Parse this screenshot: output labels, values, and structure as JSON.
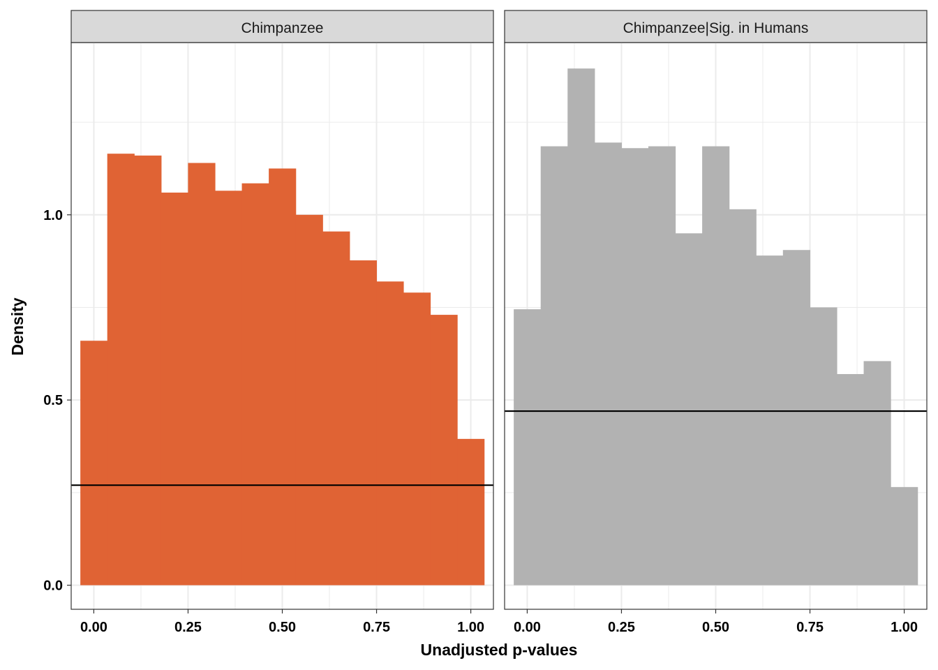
{
  "chart_data": {
    "type": "bar",
    "subtype": "faceted-histogram",
    "xlabel": "Unadjusted p-values",
    "ylabel": "Density",
    "xlim": [
      -0.06,
      1.06
    ],
    "ylim": [
      -0.065,
      1.465
    ],
    "x_ticks": [
      0.0,
      0.25,
      0.5,
      0.75,
      1.0
    ],
    "x_tick_labels": [
      "0.00",
      "0.25",
      "0.50",
      "0.75",
      "1.00"
    ],
    "y_ticks": [
      0.0,
      0.5,
      1.0
    ],
    "y_tick_labels": [
      "0.0",
      "0.5",
      "1.0"
    ],
    "grid": true,
    "bin_width": 0.0714,
    "bin_start": -0.0357,
    "facets": [
      {
        "name": "Chimpanzee",
        "fill": "#E06334",
        "values": [
          0.66,
          1.165,
          1.16,
          1.06,
          1.14,
          1.065,
          1.085,
          1.125,
          1.0,
          0.955,
          0.877,
          0.82,
          0.79,
          0.73,
          0.395
        ],
        "hline": 0.27
      },
      {
        "name": "Chimpanzee|Sig. in Humans",
        "fill": "#B2B2B2",
        "values": [
          0.745,
          1.185,
          1.395,
          1.195,
          1.18,
          1.185,
          0.95,
          1.185,
          1.015,
          0.89,
          0.905,
          0.75,
          0.57,
          0.605,
          0.265
        ],
        "hline": 0.47
      }
    ]
  }
}
